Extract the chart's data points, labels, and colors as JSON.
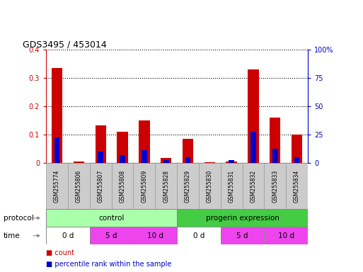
{
  "title": "GDS3495 / 453014",
  "samples": [
    "GSM255774",
    "GSM255806",
    "GSM255807",
    "GSM255808",
    "GSM255809",
    "GSM255828",
    "GSM255829",
    "GSM255830",
    "GSM255831",
    "GSM255832",
    "GSM255833",
    "GSM255834"
  ],
  "count_values": [
    0.335,
    0.005,
    0.134,
    0.11,
    0.151,
    0.018,
    0.086,
    0.004,
    0.007,
    0.33,
    0.16,
    0.1
  ],
  "percentile_values_pct": [
    22.5,
    0.5,
    10.5,
    7.0,
    11.75,
    3.0,
    5.5,
    0.25,
    2.5,
    27.5,
    13.0,
    5.0
  ],
  "ylim_left": [
    0,
    0.4
  ],
  "ylim_right": [
    0,
    100
  ],
  "yticks_left": [
    0,
    0.1,
    0.2,
    0.3,
    0.4
  ],
  "yticks_right": [
    0,
    25,
    50,
    75,
    100
  ],
  "ytick_labels_left": [
    "0",
    "0.1",
    "0.2",
    "0.3",
    "0.4"
  ],
  "ytick_labels_right": [
    "0",
    "25",
    "50",
    "75",
    "100%"
  ],
  "bar_color_count": "#cc0000",
  "bar_color_pct": "#0000cc",
  "bg_color": "#ffffff",
  "tick_color_left": "#cc0000",
  "tick_color_right": "#0000cc",
  "protocol_light": "#aaffaa",
  "protocol_dark": "#44cc44",
  "time_white": "#ffffff",
  "time_pink": "#ee44ee",
  "sample_bg": "#cccccc",
  "sample_edge": "#999999"
}
